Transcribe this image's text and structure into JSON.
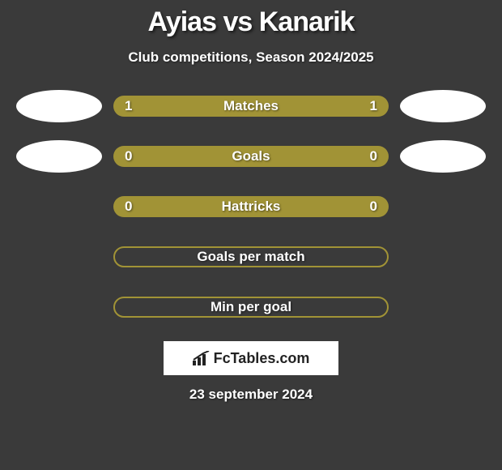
{
  "title": {
    "left": "Ayias",
    "vs": "vs",
    "right": "Kanarik"
  },
  "subtitle": "Club competitions, Season 2024/2025",
  "accent_color": "#a19336",
  "bg_color": "#3a3a3a",
  "rows": [
    {
      "label": "Matches",
      "left": "1",
      "right": "1",
      "show_left_badge": true,
      "show_right_badge": true,
      "outlined": false
    },
    {
      "label": "Goals",
      "left": "0",
      "right": "0",
      "show_left_badge": true,
      "show_right_badge": true,
      "outlined": false
    },
    {
      "label": "Hattricks",
      "left": "0",
      "right": "0",
      "show_left_badge": false,
      "show_right_badge": false,
      "outlined": false
    },
    {
      "label": "Goals per match",
      "left": "",
      "right": "",
      "show_left_badge": false,
      "show_right_badge": false,
      "outlined": true
    },
    {
      "label": "Min per goal",
      "left": "",
      "right": "",
      "show_left_badge": false,
      "show_right_badge": false,
      "outlined": true
    }
  ],
  "logo_text": "FcTables.com",
  "date": "23 september 2024"
}
